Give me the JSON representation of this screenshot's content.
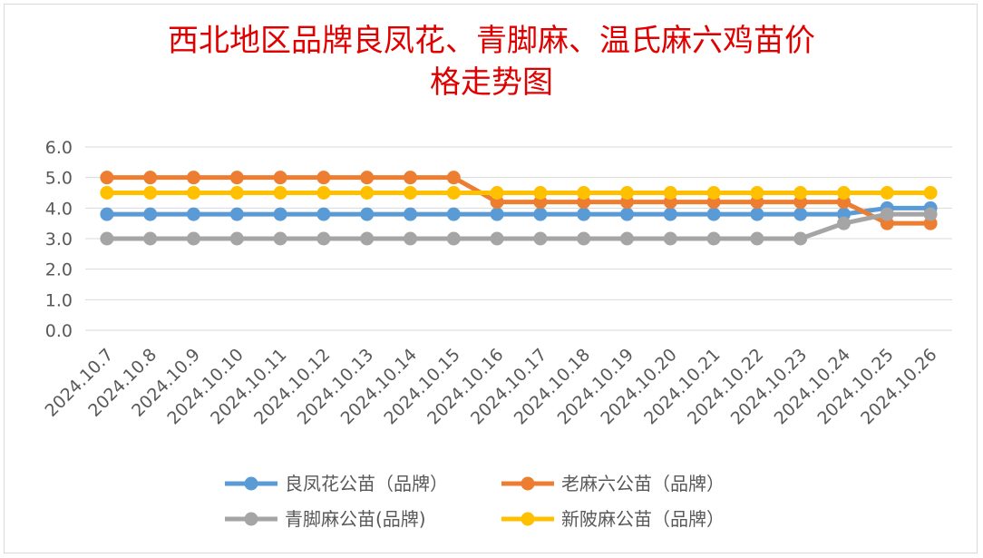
{
  "chart_data": {
    "type": "line",
    "title_line1": "西北地区品牌良凤花、青脚麻、温氏麻六鸡苗价",
    "title_line2": "格走势图",
    "categories": [
      "2024.10.7",
      "2024.10.8",
      "2024.10.9",
      "2024.10.10",
      "2024.10.11",
      "2024.10.12",
      "2024.10.13",
      "2024.10.14",
      "2024.10.15",
      "2024.10.16",
      "2024.10.17",
      "2024.10.18",
      "2024.10.19",
      "2024.10.20",
      "2024.10.21",
      "2024.10.22",
      "2024.10.23",
      "2024.10.24",
      "2024.10.25",
      "2024.10.26"
    ],
    "y_ticks": [
      "0.0",
      "1.0",
      "2.0",
      "3.0",
      "4.0",
      "5.0",
      "6.0"
    ],
    "ylim": [
      0,
      6
    ],
    "grid": true,
    "legend_position": "bottom",
    "series": [
      {
        "name": "良凤花公苗（品牌）",
        "color": "#5b9bd5",
        "values": [
          3.8,
          3.8,
          3.8,
          3.8,
          3.8,
          3.8,
          3.8,
          3.8,
          3.8,
          3.8,
          3.8,
          3.8,
          3.8,
          3.8,
          3.8,
          3.8,
          3.8,
          3.8,
          4.0,
          4.0
        ]
      },
      {
        "name": "老麻六公苗（品牌）",
        "color": "#ed7d31",
        "values": [
          5.0,
          5.0,
          5.0,
          5.0,
          5.0,
          5.0,
          5.0,
          5.0,
          5.0,
          4.2,
          4.2,
          4.2,
          4.2,
          4.2,
          4.2,
          4.2,
          4.2,
          4.2,
          3.5,
          3.5
        ]
      },
      {
        "name": "青脚麻公苗(品牌)",
        "color": "#a5a5a5",
        "values": [
          3.0,
          3.0,
          3.0,
          3.0,
          3.0,
          3.0,
          3.0,
          3.0,
          3.0,
          3.0,
          3.0,
          3.0,
          3.0,
          3.0,
          3.0,
          3.0,
          3.0,
          3.5,
          3.8,
          3.8
        ]
      },
      {
        "name": "新陂麻公苗（品牌）",
        "color": "#ffc000",
        "values": [
          4.5,
          4.5,
          4.5,
          4.5,
          4.5,
          4.5,
          4.5,
          4.5,
          4.5,
          4.5,
          4.5,
          4.5,
          4.5,
          4.5,
          4.5,
          4.5,
          4.5,
          4.5,
          4.5,
          4.5
        ]
      }
    ]
  }
}
